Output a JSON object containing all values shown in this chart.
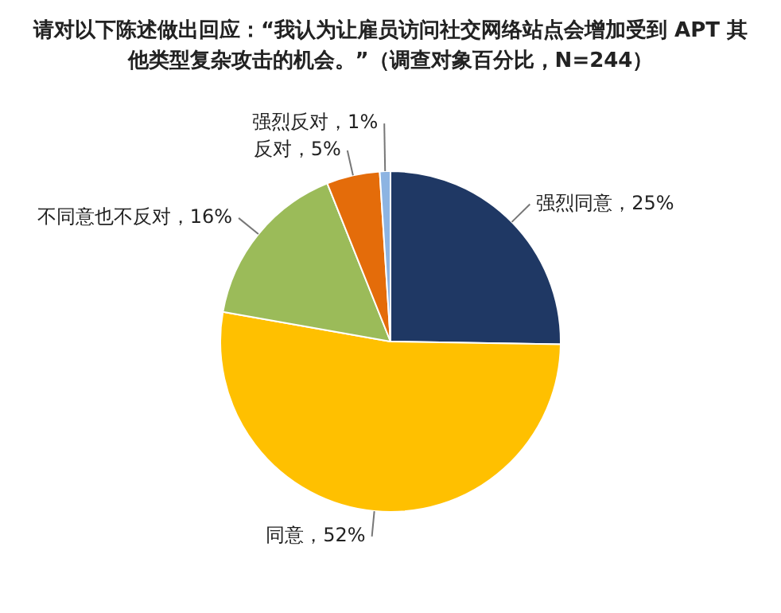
{
  "chart_data": {
    "type": "pie",
    "title": "请对以下陈述做出回应：“我认为让雇员访问社交网络站点会增加受到 APT 其他类型复杂攻击的机会。”（调查对象百分比，N=244）",
    "categories": [
      "强烈同意",
      "同意",
      "不同意也不反对",
      "反对",
      "强烈反对"
    ],
    "values": [
      25,
      52,
      16,
      5,
      1
    ],
    "value_labels": [
      "25%",
      "52%",
      "16%",
      "5%",
      "1%"
    ],
    "colors": [
      "#1f3864",
      "#ffc000",
      "#9bbb59",
      "#e46c0a",
      "#8db4e2"
    ],
    "legend": false
  }
}
